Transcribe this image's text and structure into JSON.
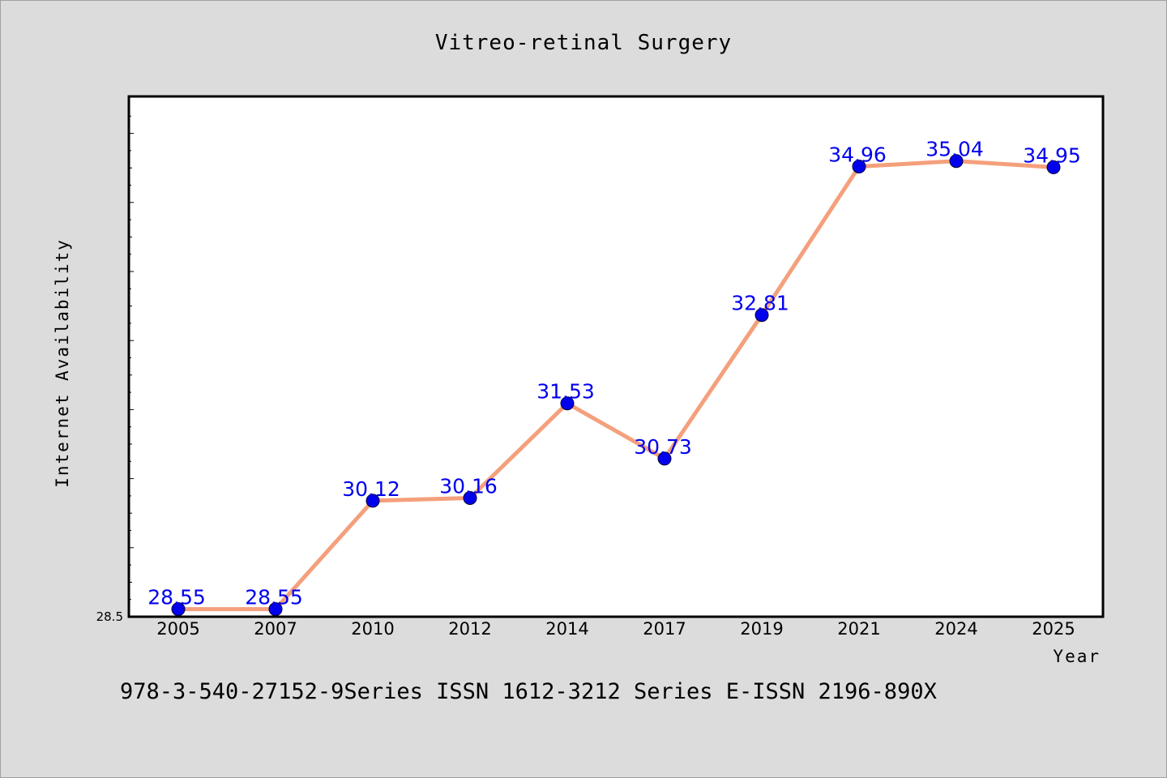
{
  "chart_data": {
    "type": "line",
    "title": "Vitreo-retinal Surgery",
    "xlabel": "Year",
    "ylabel": "Internet Availability",
    "categories": [
      "2005",
      "2007",
      "2010",
      "2012",
      "2014",
      "2017",
      "2019",
      "2021",
      "2024",
      "2025"
    ],
    "series": [
      {
        "values": [
          28.55,
          28.55,
          30.12,
          30.16,
          31.53,
          30.73,
          32.81,
          34.96,
          35.04,
          34.95
        ],
        "labels": [
          "28.55",
          "28.55",
          "30.12",
          "30.16",
          "31.53",
          "30.73",
          "32.81",
          "34.96",
          "35.04",
          "34.95"
        ]
      }
    ],
    "y_tick_label": "28.5",
    "ylim": [
      28.5,
      36.0
    ],
    "grid": false,
    "colors": {
      "line": "#f4a07c",
      "marker": "#0000ee",
      "data_label": "#0000ee",
      "plot_background": "#ffffff",
      "page_background": "#dcdcdc"
    }
  },
  "footer": "978-3-540-27152-9Series ISSN 1612-3212 Series E-ISSN 2196-890X"
}
